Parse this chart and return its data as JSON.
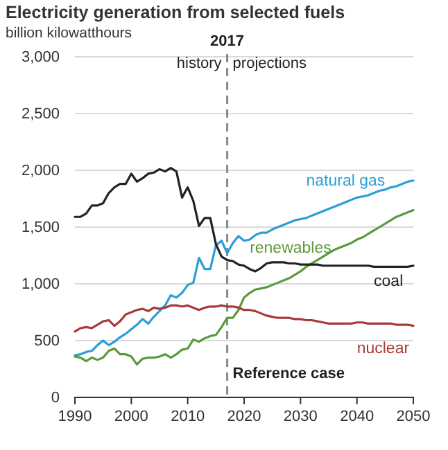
{
  "chart_data": {
    "type": "line",
    "title": "Electricity generation from selected fuels",
    "ylabel": "billion kilowatthours",
    "x": [
      1990,
      1991,
      1992,
      1993,
      1994,
      1995,
      1996,
      1997,
      1998,
      1999,
      2000,
      2001,
      2002,
      2003,
      2004,
      2005,
      2006,
      2007,
      2008,
      2009,
      2010,
      2011,
      2012,
      2013,
      2014,
      2015,
      2016,
      2017,
      2018,
      2019,
      2020,
      2021,
      2022,
      2023,
      2024,
      2025,
      2026,
      2027,
      2028,
      2029,
      2030,
      2031,
      2032,
      2033,
      2034,
      2035,
      2036,
      2037,
      2038,
      2039,
      2040,
      2041,
      2042,
      2043,
      2044,
      2045,
      2046,
      2047,
      2048,
      2049,
      2050
    ],
    "series": [
      {
        "name": "natural gas",
        "color": "#2a9fd6",
        "values": [
          370,
          380,
          400,
          410,
          460,
          500,
          460,
          490,
          530,
          560,
          600,
          640,
          690,
          650,
          710,
          760,
          810,
          900,
          880,
          920,
          990,
          1010,
          1230,
          1130,
          1130,
          1340,
          1380,
          1270,
          1360,
          1420,
          1380,
          1390,
          1430,
          1450,
          1450,
          1480,
          1500,
          1520,
          1540,
          1560,
          1570,
          1580,
          1600,
          1620,
          1640,
          1660,
          1680,
          1700,
          1720,
          1740,
          1760,
          1770,
          1780,
          1800,
          1820,
          1830,
          1850,
          1860,
          1880,
          1900,
          1910
        ]
      },
      {
        "name": "renewables",
        "color": "#5b9a3c",
        "values": [
          360,
          350,
          320,
          350,
          330,
          350,
          410,
          430,
          380,
          380,
          360,
          290,
          340,
          350,
          350,
          360,
          380,
          350,
          380,
          420,
          430,
          510,
          490,
          520,
          540,
          550,
          620,
          700,
          700,
          770,
          880,
          920,
          950,
          960,
          970,
          990,
          1010,
          1030,
          1050,
          1080,
          1110,
          1150,
          1180,
          1210,
          1240,
          1270,
          1300,
          1320,
          1340,
          1360,
          1390,
          1410,
          1440,
          1470,
          1500,
          1530,
          1560,
          1590,
          1610,
          1630,
          1650
        ]
      },
      {
        "name": "coal",
        "color": "#222222",
        "values": [
          1590,
          1590,
          1620,
          1690,
          1690,
          1710,
          1800,
          1850,
          1880,
          1880,
          1970,
          1900,
          1930,
          1970,
          1980,
          2010,
          1990,
          2020,
          1990,
          1760,
          1850,
          1730,
          1510,
          1580,
          1580,
          1350,
          1240,
          1210,
          1200,
          1170,
          1160,
          1130,
          1110,
          1140,
          1180,
          1190,
          1190,
          1190,
          1180,
          1180,
          1170,
          1170,
          1170,
          1170,
          1160,
          1160,
          1160,
          1160,
          1160,
          1160,
          1160,
          1160,
          1160,
          1150,
          1150,
          1150,
          1150,
          1150,
          1150,
          1150,
          1160
        ]
      },
      {
        "name": "nuclear",
        "color": "#a83a3a",
        "values": [
          580,
          610,
          620,
          610,
          640,
          670,
          680,
          630,
          670,
          730,
          750,
          770,
          780,
          760,
          790,
          780,
          790,
          810,
          810,
          800,
          810,
          790,
          770,
          790,
          800,
          800,
          810,
          800,
          800,
          790,
          770,
          770,
          760,
          740,
          720,
          710,
          700,
          700,
          700,
          690,
          690,
          680,
          680,
          670,
          660,
          650,
          650,
          650,
          650,
          650,
          660,
          660,
          650,
          650,
          650,
          650,
          650,
          640,
          640,
          640,
          630
        ]
      }
    ],
    "xlim": [
      1990,
      2050
    ],
    "xticks": [
      1990,
      2000,
      2010,
      2020,
      2030,
      2040,
      2050
    ],
    "ylim": [
      0,
      3000
    ],
    "yticks": [
      0,
      {
        "value": 500,
        "label": "500"
      },
      {
        "value": 1000,
        "label": "1,000"
      },
      {
        "value": 1500,
        "label": "1,500"
      },
      {
        "value": 2000,
        "label": "2,000"
      },
      {
        "value": 2500,
        "label": "2,500"
      },
      {
        "value": 3000,
        "label": "3,000"
      }
    ],
    "grid": "y",
    "legend": false,
    "line_style": "solid",
    "marker": "none",
    "ref_lines": [
      {
        "axis": "x",
        "value": 2017,
        "label": "2017",
        "color": "#888888",
        "line_style": "dashed"
      }
    ],
    "annotations": [
      "history",
      "projections",
      "Reference case"
    ]
  }
}
